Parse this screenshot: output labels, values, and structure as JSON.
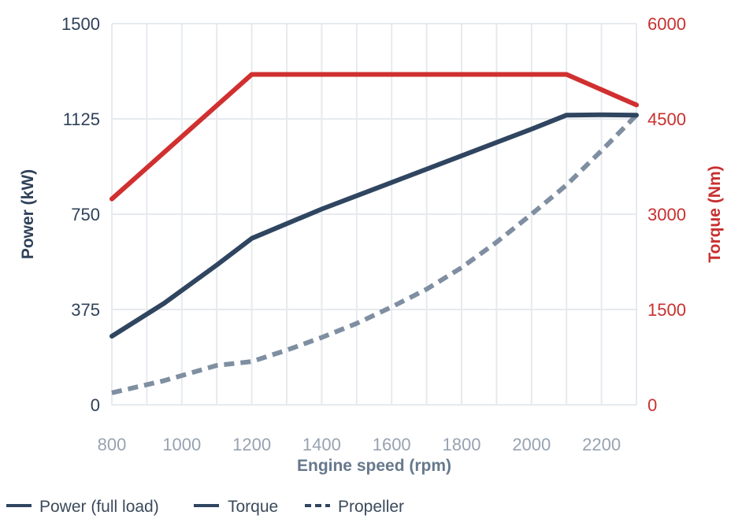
{
  "chart_data": {
    "type": "line",
    "title": "",
    "xlabel": "Engine speed (rpm)",
    "ylabel": "Power (kW)",
    "y2label": "Torque (Nm)",
    "xlim": [
      800,
      2300
    ],
    "ylim": [
      0,
      1500
    ],
    "y2lim": [
      0,
      6000
    ],
    "x_ticks": [
      800,
      1000,
      1200,
      1400,
      1600,
      1800,
      2000,
      2200
    ],
    "y_ticks": [
      0,
      375,
      750,
      1125,
      1500
    ],
    "y2_ticks": [
      0,
      1500,
      3000,
      4500,
      6000
    ],
    "grid": true,
    "legend_position": "bottom-left",
    "series": [
      {
        "name": "Power (full load)",
        "axis": "left",
        "style": "solid",
        "color": "#2f4560",
        "x": [
          800,
          950,
          1100,
          1200,
          1400,
          1600,
          1800,
          2000,
          2100,
          2200,
          2300
        ],
        "y": [
          270,
          400,
          550,
          655,
          770,
          875,
          980,
          1085,
          1140,
          1141,
          1140
        ]
      },
      {
        "name": "Torque",
        "axis": "right",
        "style": "solid",
        "color": "#d03030",
        "x": [
          800,
          1200,
          2100,
          2300
        ],
        "y": [
          3240,
          5200,
          5200,
          4720
        ]
      },
      {
        "name": "Propeller",
        "axis": "left",
        "style": "dashed",
        "color": "#7f8fa1",
        "x": [
          800,
          950,
          1100,
          1200,
          1300,
          1400,
          1500,
          1600,
          1700,
          1800,
          1900,
          2000,
          2100,
          2200,
          2300
        ],
        "y": [
          47,
          95,
          155,
          170,
          215,
          265,
          320,
          385,
          455,
          540,
          640,
          750,
          865,
          1000,
          1140
        ]
      }
    ],
    "legend": [
      {
        "label": "Power (full load)",
        "style": "solid",
        "color": "#2f4560"
      },
      {
        "label": "Torque",
        "style": "solid",
        "color": "#2f4560"
      },
      {
        "label": "Propeller",
        "style": "dashed",
        "color": "#2f4560"
      }
    ]
  }
}
